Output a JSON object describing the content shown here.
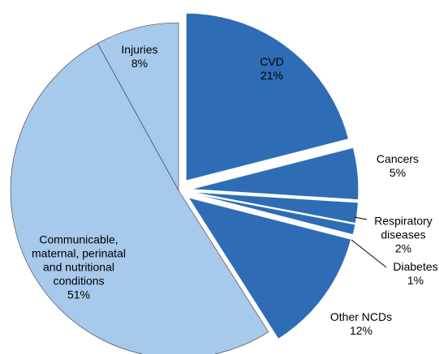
{
  "chart_data": {
    "type": "pie",
    "categories": [
      "CVD",
      "Cancers",
      "Respiratory diseases",
      "Diabetes",
      "Other NCDs",
      "Communicable, maternal, perinatal and nutritional conditions",
      "Injuries"
    ],
    "values": [
      21,
      5,
      2,
      1,
      12,
      51,
      8
    ],
    "value_labels": [
      "21%",
      "5%",
      "2%",
      "1%",
      "12%",
      "51%",
      "8%"
    ],
    "colors": [
      "#2e6db6",
      "#2e6db6",
      "#2e6db6",
      "#2e6db6",
      "#2e6db6",
      "#a7c9eb",
      "#a7c9eb"
    ],
    "explode": [
      true,
      true,
      true,
      true,
      true,
      false,
      false
    ]
  }
}
